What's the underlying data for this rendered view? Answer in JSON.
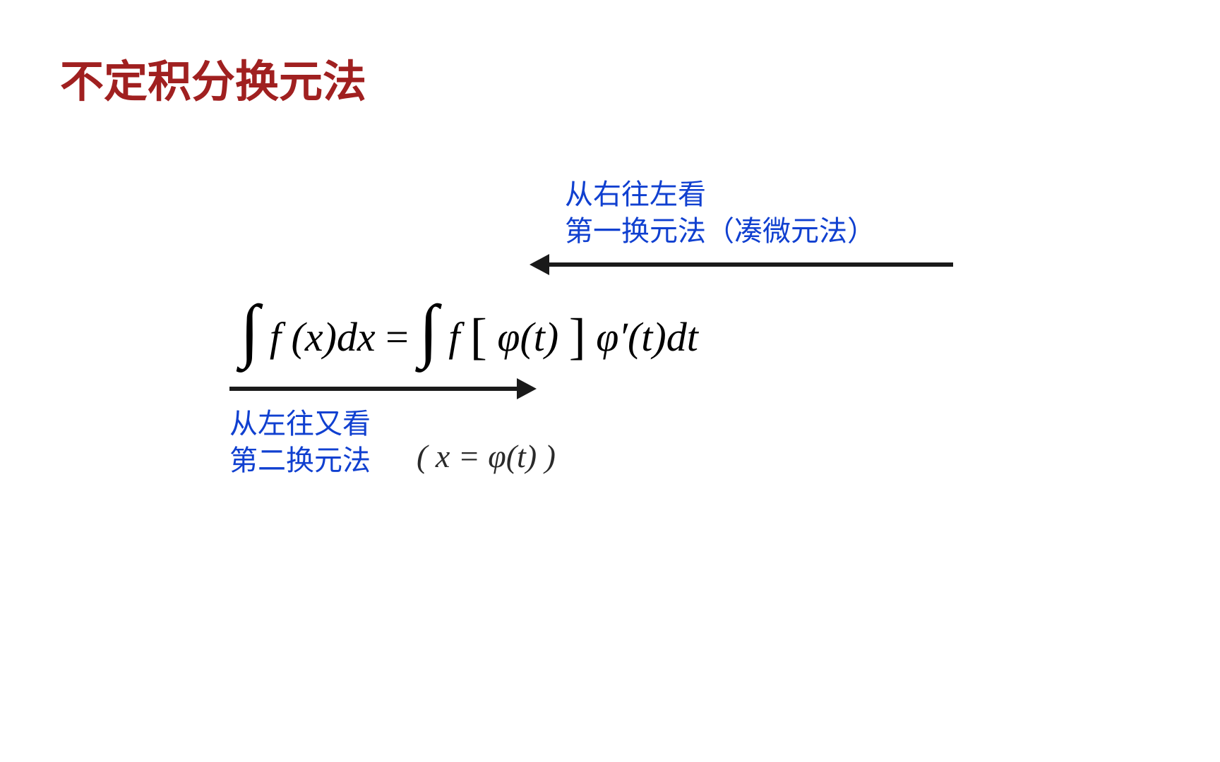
{
  "title": "不定积分换元法",
  "equation": {
    "left_integral": "∫",
    "left_part": " f (x)dx ",
    "equals": "= ",
    "right_integral": "∫",
    "right_part_1": "  f ",
    "bracket_open": "[",
    "phi_t": "φ(t)",
    "bracket_close": "]",
    "phi_prime": "φ′(t)dt"
  },
  "top_annotation": {
    "line1": "从右往左看",
    "line2": "第一换元法（凑微元法）"
  },
  "bottom_annotation": {
    "line1": "从左往又看",
    "line2": "第二换元法"
  },
  "handwritten_note": "( x = φ(t) )",
  "colors": {
    "title": "#a02020",
    "annotation": "#1040d0",
    "arrow": "#1a1a1a",
    "equation": "#000000",
    "background": "#ffffff"
  },
  "font_sizes": {
    "title": 62,
    "annotation": 40,
    "equation": 58,
    "integral": 100,
    "handwritten": 46
  }
}
